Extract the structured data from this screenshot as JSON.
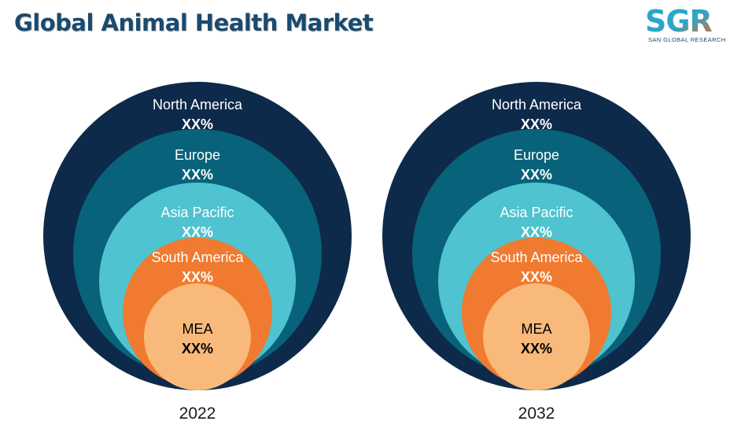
{
  "title": "Global Animal Health Market",
  "logo": {
    "mark": "SGR",
    "subtitle": "SAN GLOBAL RESEARCH",
    "colors": [
      "#2aa6c9",
      "#e06b2a"
    ]
  },
  "chart_data": [
    {
      "type": "nested-circle",
      "year_label": "2022",
      "segments": [
        {
          "name": "North America",
          "value_label": "XX%",
          "color": "#0d2a4a"
        },
        {
          "name": "Europe",
          "value_label": "XX%",
          "color": "#08627a"
        },
        {
          "name": "Asia Pacific",
          "value_label": "XX%",
          "color": "#4fc3cf"
        },
        {
          "name": "South America",
          "value_label": "XX%",
          "color": "#f07a30"
        },
        {
          "name": "MEA",
          "value_label": "XX%",
          "color": "#f8b97a"
        }
      ]
    },
    {
      "type": "nested-circle",
      "year_label": "2032",
      "segments": [
        {
          "name": "North America",
          "value_label": "XX%",
          "color": "#0d2a4a"
        },
        {
          "name": "Europe",
          "value_label": "XX%",
          "color": "#08627a"
        },
        {
          "name": "Asia Pacific",
          "value_label": "XX%",
          "color": "#4fc3cf"
        },
        {
          "name": "South America",
          "value_label": "XX%",
          "color": "#f07a30"
        },
        {
          "name": "MEA",
          "value_label": "XX%",
          "color": "#f8b97a"
        }
      ]
    }
  ]
}
